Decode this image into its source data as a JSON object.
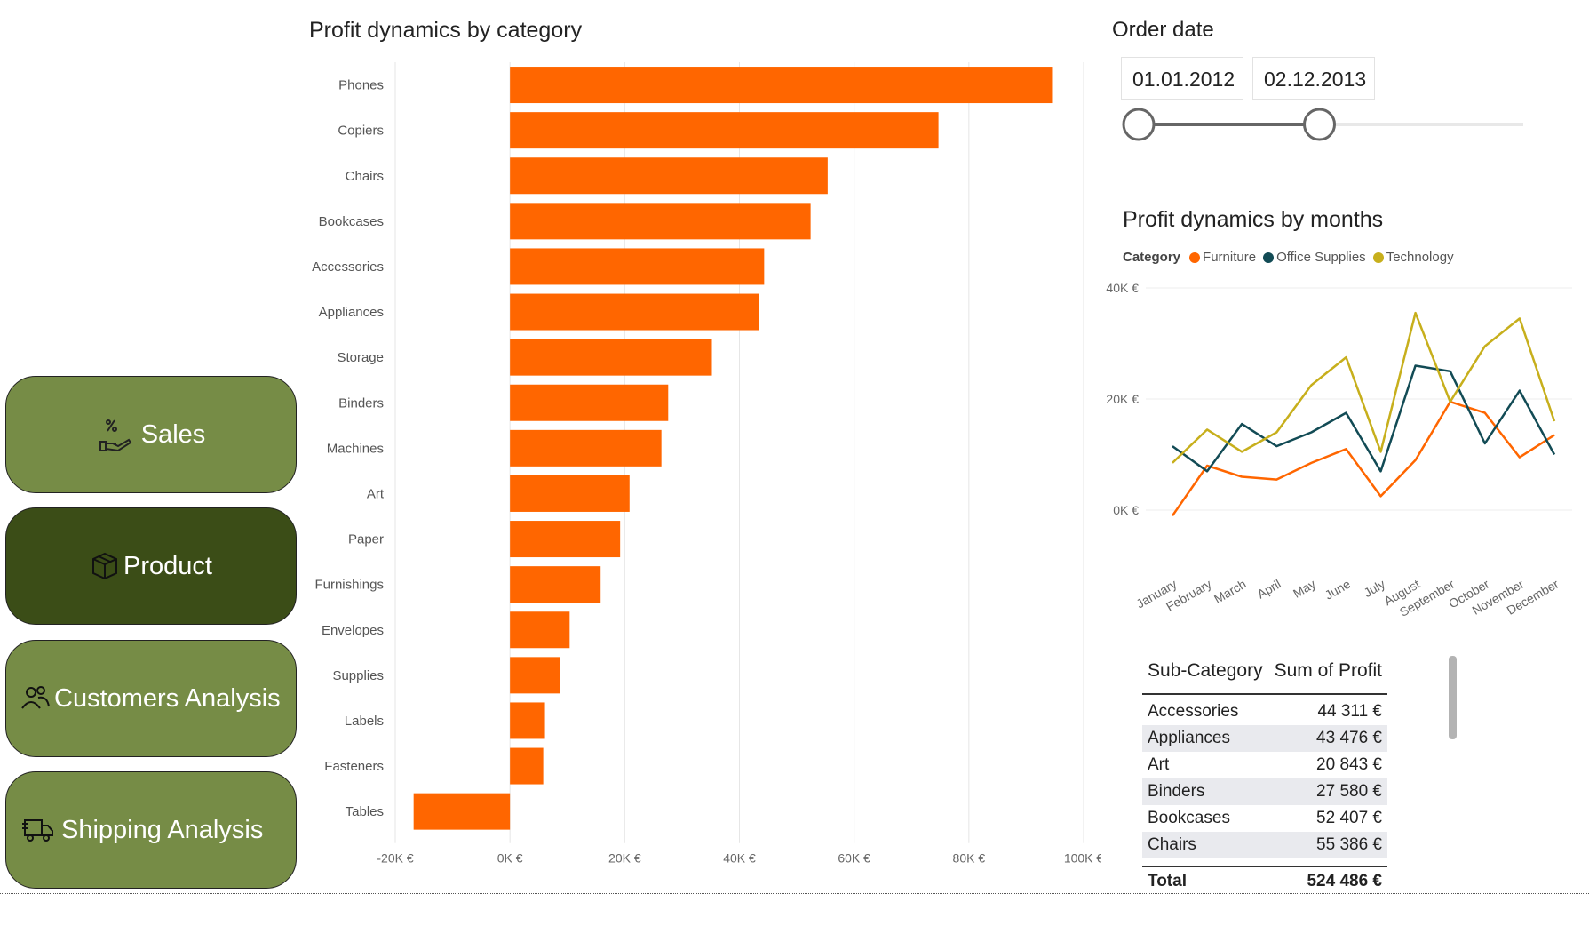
{
  "nav": {
    "sales": "Sales",
    "product": "Product",
    "customers": "Customers Analysis",
    "shipping": "Shipping Analysis"
  },
  "bar_chart": {
    "title": "Profit dynamics by category",
    "color": "#ff6600"
  },
  "order_date": {
    "title": "Order date",
    "start": "01.01.2012",
    "end": "02.12.2013",
    "slider_start_fraction": 0.0,
    "slider_end_fraction": 0.47
  },
  "line_chart": {
    "title": "Profit dynamics by months",
    "legend_title": "Category"
  },
  "table": {
    "col1": "Sub-Category",
    "col2": "Sum of Profit",
    "rows": [
      {
        "name": "Accessories",
        "value": "44 311 €"
      },
      {
        "name": "Appliances",
        "value": "43 476 €"
      },
      {
        "name": "Art",
        "value": "20 843 €"
      },
      {
        "name": "Binders",
        "value": "27 580 €"
      },
      {
        "name": "Bookcases",
        "value": "52 407 €"
      },
      {
        "name": "Chairs",
        "value": "55 386 €"
      }
    ],
    "total_label": "Total",
    "total_value": "524 486 €"
  },
  "chart_data": [
    {
      "type": "bar",
      "orientation": "horizontal",
      "title": "Profit dynamics by category",
      "categories": [
        "Phones",
        "Copiers",
        "Chairs",
        "Bookcases",
        "Accessories",
        "Appliances",
        "Storage",
        "Binders",
        "Machines",
        "Art",
        "Paper",
        "Furnishings",
        "Envelopes",
        "Supplies",
        "Labels",
        "Fasteners",
        "Tables"
      ],
      "values": [
        94500,
        74700,
        55386,
        52407,
        44311,
        43476,
        35200,
        27580,
        26400,
        20843,
        19200,
        15800,
        10400,
        8700,
        6100,
        5800,
        -16800
      ],
      "xlim": [
        -20000,
        100000
      ],
      "xticks": [
        "-20K €",
        "0K €",
        "20K €",
        "40K €",
        "60K €",
        "80K €",
        "100K €"
      ],
      "xtick_values": [
        -20000,
        0,
        20000,
        40000,
        60000,
        80000,
        100000
      ],
      "grid": true,
      "color": "#ff6600"
    },
    {
      "type": "line",
      "title": "Profit dynamics by months",
      "x": [
        "January",
        "February",
        "March",
        "April",
        "May",
        "June",
        "July",
        "August",
        "September",
        "October",
        "November",
        "December"
      ],
      "ylim": [
        0,
        40000
      ],
      "yticks": [
        "0K €",
        "20K €",
        "40K €"
      ],
      "ytick_values": [
        0,
        20000,
        40000
      ],
      "legend_title": "Category",
      "legend_position": "top-left",
      "series": [
        {
          "name": "Furniture",
          "color": "#ff6600",
          "values": [
            -1000,
            8000,
            6000,
            5500,
            8500,
            11000,
            2500,
            9000,
            19500,
            17500,
            9500,
            13500
          ]
        },
        {
          "name": "Office Supplies",
          "color": "#124b55",
          "values": [
            11500,
            7000,
            15500,
            11500,
            14000,
            17500,
            7000,
            26000,
            25000,
            12000,
            21500,
            10000
          ]
        },
        {
          "name": "Technology",
          "color": "#c7af1c",
          "values": [
            8500,
            14500,
            10500,
            14000,
            22500,
            27500,
            10500,
            35500,
            19500,
            29500,
            34500,
            16000
          ]
        }
      ]
    }
  ]
}
